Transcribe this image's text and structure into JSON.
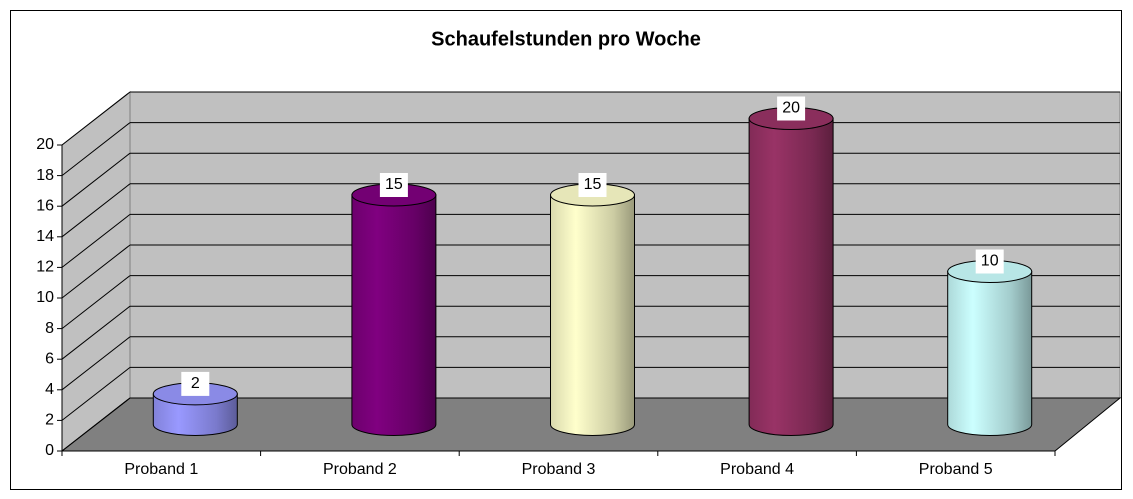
{
  "chart_data": {
    "type": "cylinder",
    "title": "Schaufelstunden pro Woche",
    "categories": [
      "Proband 1",
      "Proband 2",
      "Proband 3",
      "Proband 4",
      "Proband 5"
    ],
    "values": [
      2,
      15,
      15,
      20,
      10
    ],
    "colors": [
      "#9999ff",
      "#800080",
      "#ffffcc",
      "#993366",
      "#ccffff"
    ],
    "ylim": [
      0,
      20
    ],
    "yticks": [
      0,
      2,
      4,
      6,
      8,
      10,
      12,
      14,
      16,
      18,
      20
    ],
    "grid": true
  }
}
